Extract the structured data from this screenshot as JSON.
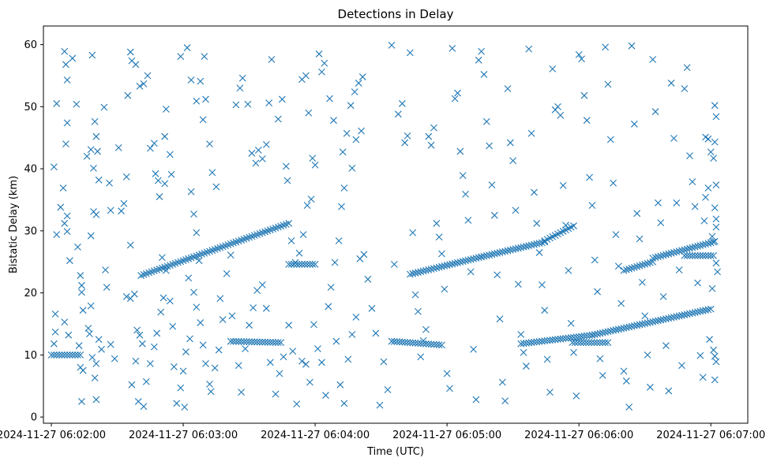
{
  "chart_data": {
    "type": "scatter",
    "title": "Detections in Delay",
    "xlabel": "Time (UTC)",
    "ylabel": "Bistatic Delay (km)",
    "marker": "x",
    "color": "#1f77b4",
    "grid": false,
    "x_unit": "minutes after 2024-11-27 06:02:00",
    "xlim": [
      -0.06,
      5.28
    ],
    "ylim": [
      -1.0,
      63.0
    ],
    "x_ticks": [
      {
        "value": 0,
        "label": "2024-11-27 06:02:00"
      },
      {
        "value": 1,
        "label": "2024-11-27 06:03:00"
      },
      {
        "value": 2,
        "label": "2024-11-27 06:04:00"
      },
      {
        "value": 3,
        "label": "2024-11-27 06:05:00"
      },
      {
        "value": 4,
        "label": "2024-11-27 06:06:00"
      },
      {
        "value": 5,
        "label": "2024-11-27 06:07:00"
      }
    ],
    "y_ticks": [
      {
        "value": 0,
        "label": "0"
      },
      {
        "value": 10,
        "label": "10"
      },
      {
        "value": 20,
        "label": "20"
      },
      {
        "value": 30,
        "label": "30"
      },
      {
        "value": 40,
        "label": "40"
      },
      {
        "value": 50,
        "label": "50"
      },
      {
        "value": 60,
        "label": "60"
      }
    ],
    "track_segments": [
      {
        "x_start": 0.68,
        "y_start": 22.8,
        "x_end": 1.8,
        "y_end": 31.2,
        "step": 0.02
      },
      {
        "x_start": 1.8,
        "y_start": 24.6,
        "x_end": 2.0,
        "y_end": 24.6,
        "step": 0.02
      },
      {
        "x_start": 0.0,
        "y_start": 10.0,
        "x_end": 0.22,
        "y_end": 10.0,
        "step": 0.02
      },
      {
        "x_start": 1.36,
        "y_start": 12.2,
        "x_end": 1.74,
        "y_end": 12.0,
        "step": 0.02
      },
      {
        "x_start": 2.58,
        "y_start": 12.2,
        "x_end": 2.96,
        "y_end": 11.6,
        "step": 0.02
      },
      {
        "x_start": 2.72,
        "y_start": 23.0,
        "x_end": 3.26,
        "y_end": 25.8,
        "step": 0.02
      },
      {
        "x_start": 3.26,
        "y_start": 25.8,
        "x_end": 3.74,
        "y_end": 28.2,
        "step": 0.02
      },
      {
        "x_start": 3.74,
        "y_start": 28.4,
        "x_end": 3.96,
        "y_end": 30.8,
        "step": 0.02
      },
      {
        "x_start": 3.56,
        "y_start": 11.8,
        "x_end": 4.1,
        "y_end": 13.2,
        "step": 0.02
      },
      {
        "x_start": 4.1,
        "y_start": 13.2,
        "x_end": 5.0,
        "y_end": 17.4,
        "step": 0.02
      },
      {
        "x_start": 4.34,
        "y_start": 23.6,
        "x_end": 4.56,
        "y_end": 25.0,
        "step": 0.02
      },
      {
        "x_start": 4.56,
        "y_start": 25.6,
        "x_end": 5.02,
        "y_end": 28.2,
        "step": 0.02
      },
      {
        "x_start": 4.8,
        "y_start": 26.0,
        "x_end": 5.02,
        "y_end": 26.0,
        "step": 0.02
      },
      {
        "x_start": 3.95,
        "y_start": 12.0,
        "x_end": 4.22,
        "y_end": 12.0,
        "step": 0.02
      }
    ],
    "clutter_points": [
      [
        0.02,
        40.3
      ],
      [
        0.04,
        50.5
      ],
      [
        0.04,
        29.4
      ],
      [
        0.03,
        16.6
      ],
      [
        0.03,
        13.7
      ],
      [
        0.02,
        11.8
      ],
      [
        0.07,
        33.8
      ],
      [
        0.09,
        36.9
      ],
      [
        0.1,
        58.9
      ],
      [
        0.11,
        56.8
      ],
      [
        0.12,
        54.3
      ],
      [
        0.12,
        47.4
      ],
      [
        0.11,
        44.0
      ],
      [
        0.1,
        31.2
      ],
      [
        0.12,
        32.4
      ],
      [
        0.12,
        29.9
      ],
      [
        0.14,
        25.2
      ],
      [
        0.1,
        15.3
      ],
      [
        0.13,
        13.2
      ],
      [
        0.16,
        57.8
      ],
      [
        0.19,
        50.4
      ],
      [
        0.2,
        27.4
      ],
      [
        0.22,
        22.8
      ],
      [
        0.23,
        21.2
      ],
      [
        0.23,
        20.1
      ],
      [
        0.24,
        17.2
      ],
      [
        0.21,
        11.5
      ],
      [
        0.22,
        8.0
      ],
      [
        0.24,
        7.5
      ],
      [
        0.23,
        2.5
      ],
      [
        0.27,
        42.0
      ],
      [
        0.3,
        43.1
      ],
      [
        0.31,
        58.3
      ],
      [
        0.33,
        47.6
      ],
      [
        0.34,
        45.2
      ],
      [
        0.35,
        42.8
      ],
      [
        0.32,
        40.1
      ],
      [
        0.36,
        38.2
      ],
      [
        0.32,
        33.1
      ],
      [
        0.34,
        32.6
      ],
      [
        0.3,
        29.2
      ],
      [
        0.3,
        17.9
      ],
      [
        0.28,
        14.3
      ],
      [
        0.29,
        13.4
      ],
      [
        0.31,
        9.6
      ],
      [
        0.34,
        8.6
      ],
      [
        0.36,
        12.5
      ],
      [
        0.38,
        10.9
      ],
      [
        0.33,
        6.3
      ],
      [
        0.34,
        2.8
      ],
      [
        0.4,
        49.9
      ],
      [
        0.44,
        37.7
      ],
      [
        0.45,
        33.3
      ],
      [
        0.41,
        23.7
      ],
      [
        0.42,
        20.9
      ],
      [
        0.45,
        11.7
      ],
      [
        0.48,
        9.4
      ],
      [
        0.51,
        43.4
      ],
      [
        0.53,
        33.2
      ],
      [
        0.55,
        34.4
      ],
      [
        0.57,
        38.7
      ],
      [
        0.58,
        51.8
      ],
      [
        0.6,
        58.8
      ],
      [
        0.61,
        57.4
      ],
      [
        0.64,
        56.8
      ],
      [
        0.67,
        53.3
      ],
      [
        0.7,
        53.7
      ],
      [
        0.73,
        55.0
      ],
      [
        0.75,
        43.3
      ],
      [
        0.78,
        44.1
      ],
      [
        0.79,
        39.2
      ],
      [
        0.81,
        38.1
      ],
      [
        0.82,
        35.5
      ],
      [
        0.86,
        37.6
      ],
      [
        0.87,
        49.6
      ],
      [
        0.86,
        45.2
      ],
      [
        0.9,
        42.3
      ],
      [
        0.91,
        39.1
      ],
      [
        0.6,
        27.7
      ],
      [
        0.57,
        19.4
      ],
      [
        0.6,
        19.1
      ],
      [
        0.63,
        19.8
      ],
      [
        0.65,
        14.0
      ],
      [
        0.67,
        13.2
      ],
      [
        0.69,
        11.8
      ],
      [
        0.64,
        9.0
      ],
      [
        0.61,
        5.2
      ],
      [
        0.66,
        2.5
      ],
      [
        0.7,
        1.7
      ],
      [
        0.72,
        5.7
      ],
      [
        0.75,
        8.6
      ],
      [
        0.78,
        11.3
      ],
      [
        0.8,
        13.5
      ],
      [
        0.83,
        16.9
      ],
      [
        0.85,
        19.2
      ],
      [
        0.87,
        23.6
      ],
      [
        0.84,
        25.7
      ],
      [
        0.9,
        18.7
      ],
      [
        0.92,
        14.6
      ],
      [
        0.93,
        8.1
      ],
      [
        0.95,
        2.2
      ],
      [
        0.98,
        4.7
      ],
      [
        1.0,
        7.4
      ],
      [
        1.02,
        10.5
      ],
      [
        1.05,
        12.6
      ],
      [
        1.01,
        1.6
      ],
      [
        0.98,
        58.1
      ],
      [
        1.03,
        59.5
      ],
      [
        1.06,
        54.3
      ],
      [
        1.1,
        50.9
      ],
      [
        1.13,
        54.1
      ],
      [
        1.15,
        47.9
      ],
      [
        1.17,
        51.2
      ],
      [
        1.16,
        58.1
      ],
      [
        1.2,
        44.0
      ],
      [
        1.22,
        39.4
      ],
      [
        1.25,
        37.1
      ],
      [
        1.06,
        36.3
      ],
      [
        1.08,
        32.7
      ],
      [
        1.1,
        29.7
      ],
      [
        1.12,
        25.2
      ],
      [
        1.04,
        22.4
      ],
      [
        1.08,
        20.1
      ],
      [
        1.1,
        17.7
      ],
      [
        1.13,
        15.2
      ],
      [
        1.15,
        11.6
      ],
      [
        1.17,
        8.6
      ],
      [
        1.2,
        5.3
      ],
      [
        1.21,
        4.1
      ],
      [
        1.24,
        7.9
      ],
      [
        1.27,
        10.8
      ],
      [
        1.3,
        15.7
      ],
      [
        1.28,
        19.1
      ],
      [
        1.33,
        23.1
      ],
      [
        1.36,
        26.1
      ],
      [
        1.4,
        50.3
      ],
      [
        1.43,
        53.0
      ],
      [
        1.45,
        54.6
      ],
      [
        1.49,
        50.4
      ],
      [
        1.52,
        42.5
      ],
      [
        1.55,
        40.9
      ],
      [
        1.57,
        43.0
      ],
      [
        1.6,
        41.6
      ],
      [
        1.63,
        43.9
      ],
      [
        1.65,
        50.6
      ],
      [
        1.67,
        57.6
      ],
      [
        1.72,
        48.0
      ],
      [
        1.75,
        51.2
      ],
      [
        1.78,
        40.4
      ],
      [
        1.79,
        38.1
      ],
      [
        1.82,
        28.4
      ],
      [
        1.85,
        24.9
      ],
      [
        1.9,
        54.4
      ],
      [
        1.93,
        55.0
      ],
      [
        1.95,
        49.0
      ],
      [
        1.98,
        41.7
      ],
      [
        2.0,
        40.6
      ],
      [
        1.97,
        35.1
      ],
      [
        1.94,
        34.1
      ],
      [
        1.91,
        29.4
      ],
      [
        1.88,
        26.4
      ],
      [
        1.37,
        16.3
      ],
      [
        1.42,
        8.3
      ],
      [
        1.44,
        4.0
      ],
      [
        1.47,
        11.0
      ],
      [
        1.5,
        14.8
      ],
      [
        1.53,
        17.6
      ],
      [
        1.56,
        20.4
      ],
      [
        1.6,
        21.3
      ],
      [
        1.63,
        17.5
      ],
      [
        1.66,
        8.8
      ],
      [
        1.7,
        3.7
      ],
      [
        1.73,
        7.0
      ],
      [
        1.76,
        9.7
      ],
      [
        1.8,
        14.8
      ],
      [
        1.83,
        10.6
      ],
      [
        1.86,
        2.1
      ],
      [
        1.9,
        9.0
      ],
      [
        1.93,
        8.5
      ],
      [
        1.96,
        5.6
      ],
      [
        1.99,
        14.9
      ],
      [
        2.02,
        11.0
      ],
      [
        2.05,
        8.8
      ],
      [
        2.08,
        3.5
      ],
      [
        2.1,
        17.8
      ],
      [
        2.12,
        20.9
      ],
      [
        2.15,
        24.9
      ],
      [
        2.18,
        28.4
      ],
      [
        2.2,
        33.9
      ],
      [
        2.22,
        36.9
      ],
      [
        2.24,
        45.7
      ],
      [
        2.27,
        50.2
      ],
      [
        2.3,
        52.4
      ],
      [
        2.33,
        53.8
      ],
      [
        2.36,
        54.8
      ],
      [
        2.35,
        46.1
      ],
      [
        2.31,
        44.7
      ],
      [
        2.28,
        40.1
      ],
      [
        2.21,
        42.7
      ],
      [
        2.14,
        47.8
      ],
      [
        2.11,
        51.3
      ],
      [
        2.07,
        57.0
      ],
      [
        2.05,
        55.6
      ],
      [
        2.03,
        58.5
      ],
      [
        2.16,
        12.2
      ],
      [
        2.19,
        5.2
      ],
      [
        2.22,
        2.2
      ],
      [
        2.25,
        9.3
      ],
      [
        2.28,
        13.3
      ],
      [
        2.31,
        16.1
      ],
      [
        2.34,
        25.5
      ],
      [
        2.37,
        26.2
      ],
      [
        2.4,
        22.2
      ],
      [
        2.43,
        17.5
      ],
      [
        2.46,
        13.5
      ],
      [
        2.49,
        1.9
      ],
      [
        2.52,
        8.9
      ],
      [
        2.55,
        4.4
      ],
      [
        2.58,
        59.9
      ],
      [
        2.6,
        24.6
      ],
      [
        2.63,
        48.8
      ],
      [
        2.66,
        50.5
      ],
      [
        2.68,
        44.2
      ],
      [
        2.7,
        45.3
      ],
      [
        2.72,
        58.7
      ],
      [
        2.74,
        29.7
      ],
      [
        2.76,
        19.7
      ],
      [
        2.78,
        17.0
      ],
      [
        2.8,
        9.7
      ],
      [
        2.82,
        12.3
      ],
      [
        2.84,
        14.1
      ],
      [
        2.86,
        45.2
      ],
      [
        2.88,
        43.8
      ],
      [
        2.9,
        46.6
      ],
      [
        2.92,
        31.2
      ],
      [
        2.94,
        29.0
      ],
      [
        2.96,
        26.3
      ],
      [
        2.98,
        20.6
      ],
      [
        3.0,
        7.0
      ],
      [
        3.02,
        4.6
      ],
      [
        3.04,
        59.4
      ],
      [
        3.06,
        51.3
      ],
      [
        3.08,
        52.2
      ],
      [
        3.1,
        42.8
      ],
      [
        3.12,
        38.9
      ],
      [
        3.14,
        35.9
      ],
      [
        3.16,
        31.7
      ],
      [
        3.18,
        23.4
      ],
      [
        3.2,
        10.9
      ],
      [
        3.22,
        2.8
      ],
      [
        3.24,
        57.5
      ],
      [
        3.26,
        58.9
      ],
      [
        3.28,
        55.2
      ],
      [
        3.3,
        47.6
      ],
      [
        3.32,
        43.7
      ],
      [
        3.34,
        37.4
      ],
      [
        3.36,
        32.5
      ],
      [
        3.38,
        22.9
      ],
      [
        3.4,
        15.8
      ],
      [
        3.42,
        5.6
      ],
      [
        3.44,
        2.6
      ],
      [
        3.46,
        52.9
      ],
      [
        3.48,
        44.2
      ],
      [
        3.5,
        41.3
      ],
      [
        3.52,
        33.3
      ],
      [
        3.54,
        21.4
      ],
      [
        3.56,
        13.3
      ],
      [
        3.58,
        10.4
      ],
      [
        3.6,
        8.2
      ],
      [
        3.62,
        59.3
      ],
      [
        3.64,
        45.7
      ],
      [
        3.66,
        36.2
      ],
      [
        3.68,
        31.2
      ],
      [
        3.7,
        26.5
      ],
      [
        3.72,
        21.3
      ],
      [
        3.74,
        17.2
      ],
      [
        3.76,
        9.3
      ],
      [
        3.78,
        4.0
      ],
      [
        3.8,
        56.1
      ],
      [
        3.82,
        49.5
      ],
      [
        3.84,
        50.0
      ],
      [
        3.86,
        48.6
      ],
      [
        3.88,
        37.3
      ],
      [
        3.9,
        30.9
      ],
      [
        3.92,
        23.6
      ],
      [
        3.94,
        15.1
      ],
      [
        3.96,
        10.4
      ],
      [
        3.98,
        3.4
      ],
      [
        4.0,
        58.4
      ],
      [
        4.02,
        57.7
      ],
      [
        4.04,
        51.8
      ],
      [
        4.06,
        47.8
      ],
      [
        4.08,
        38.6
      ],
      [
        4.1,
        34.1
      ],
      [
        4.12,
        25.3
      ],
      [
        4.14,
        20.2
      ],
      [
        4.16,
        9.4
      ],
      [
        4.18,
        6.7
      ],
      [
        4.2,
        59.6
      ],
      [
        4.22,
        53.6
      ],
      [
        4.24,
        44.7
      ],
      [
        4.26,
        37.7
      ],
      [
        4.28,
        29.4
      ],
      [
        4.3,
        24.3
      ],
      [
        4.32,
        18.3
      ],
      [
        4.34,
        7.4
      ],
      [
        4.36,
        5.8
      ],
      [
        4.38,
        1.6
      ],
      [
        4.4,
        59.8
      ],
      [
        4.42,
        47.2
      ],
      [
        4.44,
        32.8
      ],
      [
        4.46,
        28.7
      ],
      [
        4.48,
        21.7
      ],
      [
        4.5,
        16.3
      ],
      [
        4.52,
        10.0
      ],
      [
        4.54,
        4.8
      ],
      [
        4.56,
        57.6
      ],
      [
        4.58,
        49.2
      ],
      [
        4.6,
        34.5
      ],
      [
        4.62,
        31.3
      ],
      [
        4.64,
        19.4
      ],
      [
        4.66,
        11.5
      ],
      [
        4.68,
        4.2
      ],
      [
        4.7,
        53.8
      ],
      [
        4.72,
        44.9
      ],
      [
        4.74,
        34.5
      ],
      [
        4.76,
        23.7
      ],
      [
        4.78,
        8.3
      ],
      [
        4.8,
        52.9
      ],
      [
        4.82,
        56.3
      ],
      [
        4.84,
        42.1
      ],
      [
        4.86,
        37.9
      ],
      [
        4.88,
        33.9
      ],
      [
        4.9,
        21.6
      ],
      [
        4.92,
        9.9
      ],
      [
        4.94,
        6.4
      ],
      [
        4.96,
        45.1
      ],
      [
        4.98,
        44.8
      ],
      [
        5.0,
        42.7
      ],
      [
        5.02,
        41.7
      ],
      [
        4.98,
        36.9
      ],
      [
        4.96,
        35.4
      ],
      [
        4.95,
        31.6
      ],
      [
        5.01,
        29.1
      ],
      [
        5.03,
        28.3
      ],
      [
        5.04,
        24.8
      ],
      [
        5.05,
        23.4
      ],
      [
        5.01,
        20.7
      ],
      [
        4.99,
        12.5
      ],
      [
        5.02,
        10.8
      ],
      [
        5.04,
        8.9
      ],
      [
        5.03,
        6.0
      ],
      [
        5.03,
        50.2
      ],
      [
        5.04,
        48.4
      ],
      [
        5.03,
        44.3
      ],
      [
        5.04,
        37.4
      ],
      [
        5.03,
        33.7
      ],
      [
        5.04,
        31.9
      ],
      [
        5.04,
        30.6
      ],
      [
        5.03,
        9.8
      ]
    ]
  }
}
